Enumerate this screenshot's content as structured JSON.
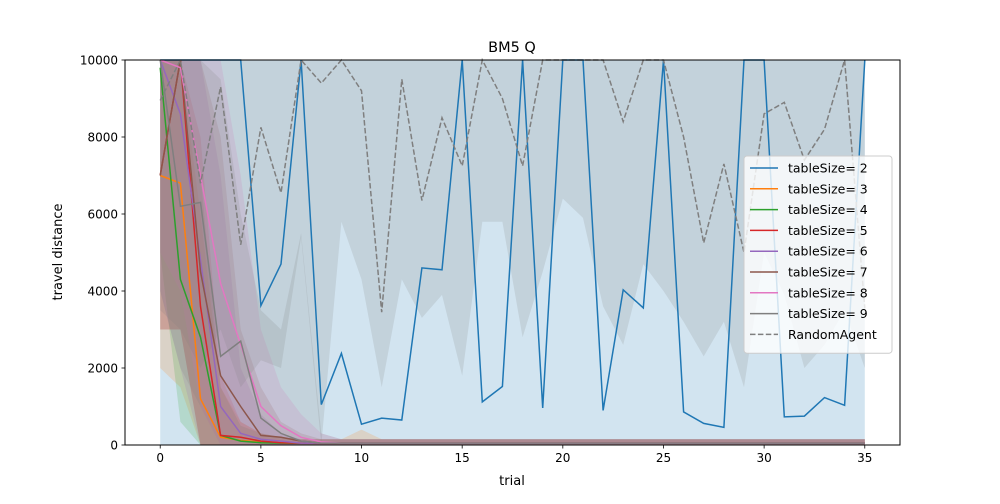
{
  "chart_data": {
    "type": "line",
    "title": "BM5  Q",
    "xlabel": "trial",
    "ylabel": "travel distance",
    "xlim": [
      -1.75,
      36.75
    ],
    "ylim": [
      0,
      10000
    ],
    "x_ticks": [
      0,
      5,
      10,
      15,
      20,
      25,
      30,
      35
    ],
    "y_ticks": [
      0,
      2000,
      4000,
      6000,
      8000,
      10000
    ],
    "grid": false,
    "legend_position": "center-right",
    "x": [
      0,
      1,
      2,
      3,
      4,
      5,
      6,
      7,
      8,
      9,
      10,
      11,
      12,
      13,
      14,
      15,
      16,
      17,
      18,
      19,
      20,
      21,
      22,
      23,
      24,
      25,
      26,
      27,
      28,
      29,
      30,
      31,
      32,
      33,
      34,
      35
    ],
    "series": [
      {
        "name": "tableSize= 2",
        "color": "#1f77b4",
        "dash": false,
        "values": [
          10000,
          10000,
          10000,
          10000,
          10000,
          3620,
          4700,
          10000,
          1050,
          2380,
          540,
          700,
          650,
          4600,
          4550,
          10000,
          1120,
          1520,
          10000,
          960,
          10000,
          10000,
          900,
          4030,
          3560,
          10000,
          860,
          560,
          460,
          10000,
          10000,
          730,
          750,
          1230,
          1030,
          10000
        ],
        "band_lower": [
          0,
          0,
          0,
          0,
          0,
          0,
          0,
          0,
          0,
          0,
          0,
          0,
          0,
          0,
          0,
          0,
          0,
          0,
          0,
          0,
          0,
          0,
          0,
          0,
          0,
          0,
          0,
          0,
          0,
          0,
          0,
          0,
          0,
          0,
          0,
          0
        ],
        "band_upper": [
          10000,
          10000,
          10000,
          10000,
          10000,
          10000,
          10000,
          10000,
          10000,
          10000,
          10000,
          10000,
          10000,
          10000,
          10000,
          10000,
          10000,
          10000,
          10000,
          10000,
          10000,
          10000,
          10000,
          10000,
          10000,
          10000,
          10000,
          10000,
          10000,
          10000,
          10000,
          10000,
          10000,
          10000,
          10000,
          10000
        ]
      },
      {
        "name": "tableSize= 3",
        "color": "#ff7f0e",
        "dash": false,
        "values": [
          7000,
          6800,
          1200,
          200,
          120,
          80,
          60,
          50,
          50,
          50,
          50,
          50,
          50,
          50,
          50,
          50,
          50,
          50,
          50,
          50,
          50,
          50,
          50,
          50,
          50,
          50,
          50,
          50,
          50,
          50,
          50,
          50,
          50,
          50,
          50,
          50
        ],
        "band_lower": [
          2000,
          1500,
          0,
          0,
          0,
          0,
          0,
          0,
          0,
          0,
          0,
          0,
          0,
          0,
          0,
          0,
          0,
          0,
          0,
          0,
          0,
          0,
          0,
          0,
          0,
          0,
          0,
          0,
          0,
          0,
          0,
          0,
          0,
          0,
          0,
          0
        ],
        "band_upper": [
          10000,
          10000,
          6000,
          1500,
          600,
          300,
          200,
          150,
          150,
          150,
          400,
          150,
          150,
          150,
          150,
          150,
          150,
          150,
          150,
          150,
          150,
          150,
          150,
          150,
          150,
          150,
          150,
          150,
          150,
          150,
          150,
          150,
          150,
          150,
          150,
          150
        ]
      },
      {
        "name": "tableSize= 4",
        "color": "#2ca02c",
        "dash": false,
        "values": [
          9800,
          4300,
          2800,
          250,
          100,
          60,
          50,
          50,
          50,
          50,
          50,
          50,
          50,
          50,
          50,
          50,
          50,
          50,
          50,
          50,
          50,
          50,
          50,
          50,
          50,
          50,
          50,
          50,
          50,
          50,
          50,
          50,
          50,
          50,
          50,
          50
        ],
        "band_lower": [
          5000,
          600,
          0,
          0,
          0,
          0,
          0,
          0,
          0,
          0,
          0,
          0,
          0,
          0,
          0,
          0,
          0,
          0,
          0,
          0,
          0,
          0,
          0,
          0,
          0,
          0,
          0,
          0,
          0,
          0,
          0,
          0,
          0,
          0,
          0,
          0
        ],
        "band_upper": [
          10000,
          10000,
          7000,
          1500,
          500,
          300,
          200,
          150,
          150,
          150,
          150,
          150,
          150,
          150,
          150,
          150,
          150,
          150,
          150,
          150,
          150,
          150,
          150,
          150,
          150,
          150,
          150,
          150,
          150,
          150,
          150,
          150,
          150,
          150,
          150,
          150
        ]
      },
      {
        "name": "tableSize= 5",
        "color": "#d62728",
        "dash": false,
        "values": [
          7000,
          10000,
          3600,
          250,
          200,
          100,
          60,
          50,
          50,
          50,
          50,
          50,
          50,
          50,
          50,
          50,
          50,
          50,
          50,
          50,
          50,
          50,
          50,
          50,
          50,
          50,
          50,
          50,
          50,
          50,
          50,
          50,
          50,
          50,
          50,
          50
        ],
        "band_lower": [
          3000,
          3000,
          0,
          0,
          0,
          0,
          0,
          0,
          0,
          0,
          0,
          0,
          0,
          0,
          0,
          0,
          0,
          0,
          0,
          0,
          0,
          0,
          0,
          0,
          0,
          0,
          0,
          0,
          0,
          0,
          0,
          0,
          0,
          0,
          0,
          0
        ],
        "band_upper": [
          10000,
          10000,
          8000,
          1800,
          600,
          300,
          200,
          150,
          150,
          150,
          150,
          150,
          150,
          150,
          150,
          150,
          150,
          150,
          150,
          150,
          150,
          150,
          150,
          150,
          150,
          150,
          150,
          150,
          150,
          150,
          150,
          150,
          150,
          150,
          150,
          150
        ]
      },
      {
        "name": "tableSize= 6",
        "color": "#9467bd",
        "dash": false,
        "values": [
          10000,
          8600,
          4800,
          1000,
          300,
          150,
          100,
          50,
          50,
          50,
          50,
          50,
          50,
          50,
          50,
          50,
          50,
          50,
          50,
          50,
          50,
          50,
          50,
          50,
          50,
          50,
          50,
          50,
          50,
          50,
          50,
          50,
          50,
          50,
          50,
          50
        ],
        "band_lower": [
          4000,
          2000,
          0,
          0,
          0,
          0,
          0,
          0,
          0,
          0,
          0,
          0,
          0,
          0,
          0,
          0,
          0,
          0,
          0,
          0,
          0,
          0,
          0,
          0,
          0,
          0,
          0,
          0,
          0,
          0,
          0,
          0,
          0,
          0,
          0,
          0
        ],
        "band_upper": [
          10000,
          10000,
          10000,
          7000,
          2000,
          800,
          300,
          150,
          150,
          150,
          150,
          150,
          150,
          150,
          150,
          150,
          150,
          150,
          150,
          150,
          150,
          150,
          150,
          150,
          150,
          150,
          150,
          150,
          150,
          150,
          150,
          150,
          150,
          150,
          150,
          150
        ]
      },
      {
        "name": "tableSize= 7",
        "color": "#8c564b",
        "dash": false,
        "values": [
          7000,
          10000,
          4500,
          1800,
          1000,
          250,
          200,
          100,
          50,
          50,
          50,
          50,
          50,
          50,
          50,
          50,
          50,
          50,
          50,
          50,
          50,
          50,
          50,
          50,
          50,
          50,
          50,
          50,
          50,
          50,
          50,
          50,
          50,
          50,
          50,
          50
        ],
        "band_lower": [
          3000,
          3000,
          0,
          0,
          0,
          0,
          0,
          0,
          0,
          0,
          0,
          0,
          0,
          0,
          0,
          0,
          0,
          0,
          0,
          0,
          0,
          0,
          0,
          0,
          0,
          0,
          0,
          0,
          0,
          0,
          0,
          0,
          0,
          0,
          0,
          0
        ],
        "band_upper": [
          10000,
          10000,
          10000,
          8000,
          3000,
          1500,
          600,
          300,
          150,
          150,
          150,
          150,
          150,
          150,
          150,
          150,
          150,
          150,
          150,
          150,
          150,
          150,
          150,
          150,
          150,
          150,
          150,
          150,
          150,
          150,
          150,
          150,
          150,
          150,
          150,
          150
        ]
      },
      {
        "name": "tableSize= 8",
        "color": "#e377c2",
        "dash": false,
        "values": [
          10000,
          9800,
          7000,
          4200,
          2600,
          1000,
          500,
          200,
          80,
          50,
          50,
          50,
          50,
          50,
          50,
          50,
          50,
          50,
          50,
          50,
          50,
          50,
          50,
          50,
          50,
          50,
          50,
          50,
          50,
          50,
          50,
          50,
          50,
          50,
          50,
          50
        ],
        "band_lower": [
          5000,
          4000,
          1000,
          0,
          0,
          0,
          0,
          0,
          0,
          0,
          0,
          0,
          0,
          0,
          0,
          0,
          0,
          0,
          0,
          0,
          0,
          0,
          0,
          0,
          0,
          0,
          0,
          0,
          0,
          0,
          0,
          0,
          0,
          0,
          0,
          0
        ],
        "band_upper": [
          10000,
          10000,
          10000,
          10000,
          7000,
          3000,
          1500,
          800,
          300,
          150,
          150,
          150,
          150,
          150,
          150,
          150,
          150,
          150,
          150,
          150,
          150,
          150,
          150,
          150,
          150,
          150,
          150,
          150,
          150,
          150,
          150,
          150,
          150,
          150,
          150,
          150
        ]
      },
      {
        "name": "tableSize= 9",
        "color": "#7f7f7f",
        "dash": false,
        "values": [
          10000,
          6200,
          6300,
          2300,
          2700,
          700,
          300,
          100,
          50,
          50,
          50,
          50,
          50,
          50,
          50,
          50,
          50,
          50,
          50,
          50,
          50,
          50,
          50,
          50,
          50,
          50,
          50,
          50,
          50,
          50,
          50,
          50,
          50,
          50,
          50,
          50
        ],
        "band_lower": [
          4000,
          2000,
          1000,
          0,
          0,
          0,
          0,
          0,
          0,
          0,
          0,
          0,
          0,
          0,
          0,
          0,
          0,
          0,
          0,
          0,
          0,
          0,
          0,
          0,
          0,
          0,
          0,
          0,
          0,
          0,
          0,
          0,
          0,
          0,
          0,
          0
        ],
        "band_upper": [
          10000,
          10000,
          10000,
          9500,
          6000,
          3500,
          3000,
          5500,
          300,
          150,
          150,
          150,
          150,
          150,
          150,
          150,
          150,
          150,
          150,
          150,
          150,
          150,
          150,
          150,
          150,
          150,
          150,
          150,
          150,
          150,
          150,
          150,
          150,
          150,
          150,
          150
        ]
      },
      {
        "name": "RandomAgent",
        "color": "#7f7f7f",
        "dash": true,
        "values": [
          8950,
          10000,
          6800,
          9300,
          5200,
          8250,
          6550,
          10000,
          9400,
          10000,
          9200,
          3450,
          9500,
          6350,
          8500,
          7250,
          10000,
          9000,
          7250,
          10000,
          10000,
          10000,
          10000,
          8400,
          10000,
          10000,
          8000,
          5250,
          7300,
          5000,
          8600,
          8900,
          7400,
          8200,
          10000,
          3550
        ],
        "band_lower": [
          3500,
          3000,
          2000,
          3000,
          1500,
          2200,
          2000,
          5400,
          0,
          5800,
          4300,
          1500,
          4300,
          3300,
          3900,
          1800,
          5800,
          5800,
          2800,
          4500,
          6400,
          5900,
          3600,
          2600,
          4700,
          4000,
          3200,
          2300,
          3200,
          1500,
          5000,
          3900,
          2000,
          2600,
          3500,
          2000
        ],
        "band_upper": [
          10000,
          10000,
          10000,
          10000,
          10000,
          10000,
          10000,
          10000,
          10000,
          10000,
          10000,
          10000,
          10000,
          10000,
          10000,
          10000,
          10000,
          10000,
          10000,
          10000,
          10000,
          10000,
          10000,
          10000,
          10000,
          10000,
          10000,
          10000,
          10000,
          10000,
          10000,
          10000,
          10000,
          10000,
          10000,
          10000
        ]
      }
    ]
  }
}
